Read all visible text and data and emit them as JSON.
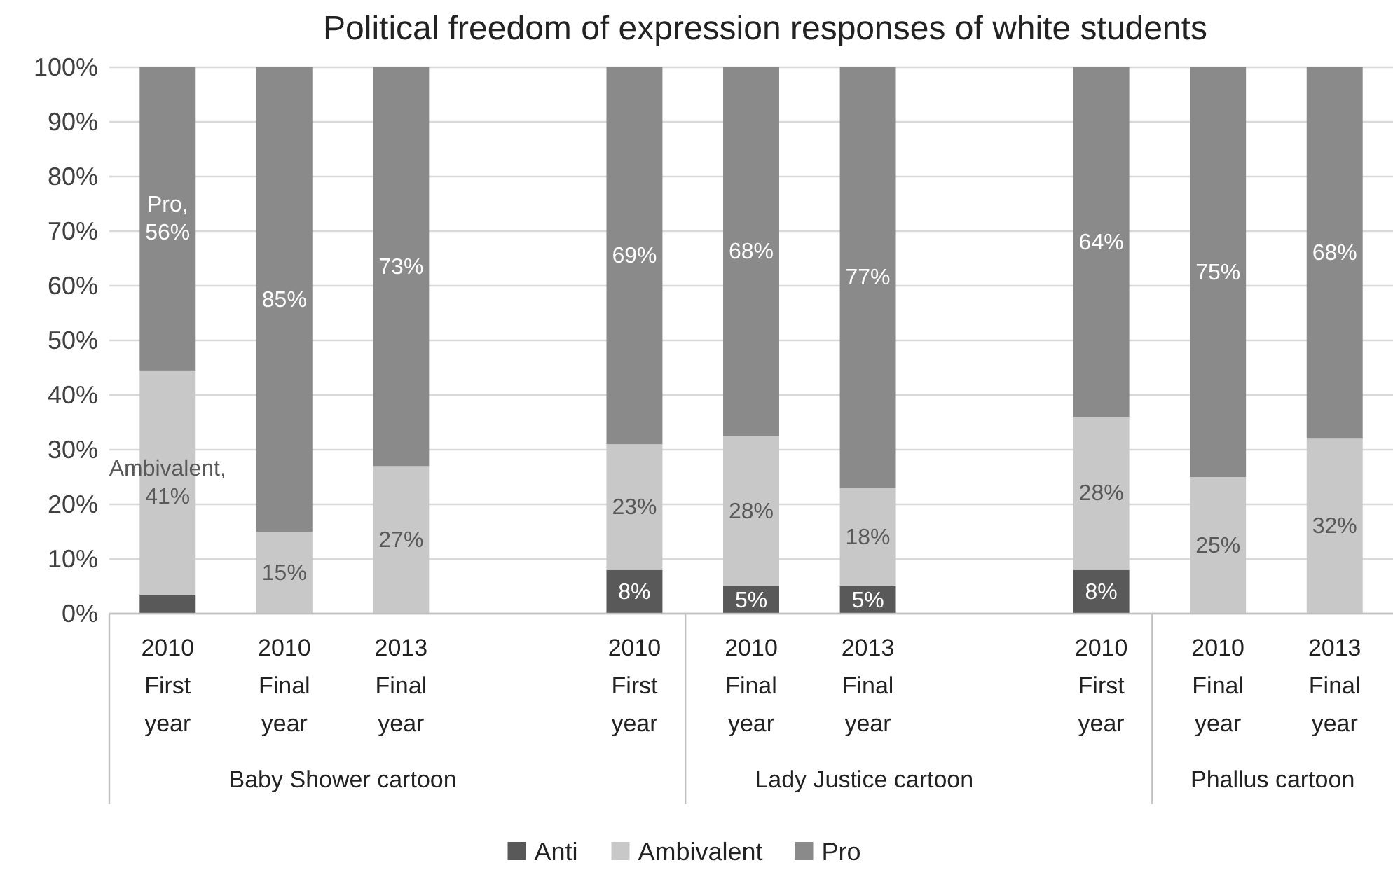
{
  "chart_data": {
    "type": "bar",
    "stacked": true,
    "title": "Political freedom of expression responses of white students",
    "categories": [
      "2010 First year",
      "2010 Final year",
      "2013 Final year",
      null,
      "2010 First year",
      "2010 Final year",
      "2013 Final year",
      null,
      "2010 First year",
      "2010 Final year",
      "2013 Final year"
    ],
    "series": [
      {
        "name": "Anti",
        "color": "#595959",
        "values": [
          3.5,
          0,
          0,
          null,
          8,
          5,
          5,
          null,
          8,
          0,
          0
        ],
        "value_labels": [
          null,
          null,
          null,
          null,
          "8%",
          "5%",
          "5%",
          null,
          "8%",
          null,
          null
        ]
      },
      {
        "name": "Ambivalent",
        "color": "#c8c8c8",
        "values": [
          41,
          15,
          27,
          null,
          23,
          27.5,
          18,
          null,
          28,
          25,
          32
        ],
        "value_labels": [
          "Ambivalent, 41%",
          "15%",
          "27%",
          null,
          "23%",
          "28%",
          "18%",
          null,
          "28%",
          "25%",
          "32%"
        ]
      },
      {
        "name": "Pro",
        "color": "#8a8a8a",
        "values": [
          55.5,
          85,
          73,
          null,
          69,
          67.5,
          77,
          null,
          64,
          75,
          68
        ],
        "value_labels": [
          "Pro, 56%",
          "85%",
          "73%",
          null,
          "69%",
          "68%",
          "77%",
          null,
          "64%",
          "75%",
          "68%"
        ]
      }
    ],
    "ylim": [
      0,
      100
    ],
    "yticks": [
      {
        "value": 0,
        "label": "0%"
      },
      {
        "value": 10,
        "label": "10%"
      },
      {
        "value": 20,
        "label": "20%"
      },
      {
        "value": 30,
        "label": "30%"
      },
      {
        "value": 40,
        "label": "40%"
      },
      {
        "value": 50,
        "label": "50%"
      },
      {
        "value": 60,
        "label": "60%"
      },
      {
        "value": 70,
        "label": "70%"
      },
      {
        "value": 80,
        "label": "80%"
      },
      {
        "value": 90,
        "label": "90%"
      },
      {
        "value": 100,
        "label": "100%"
      }
    ],
    "grid": "y",
    "legend": "bottom",
    "annotations": [
      "Baby Shower cartoon",
      "Lady Justice cartoon",
      "Phallus cartoon"
    ]
  }
}
